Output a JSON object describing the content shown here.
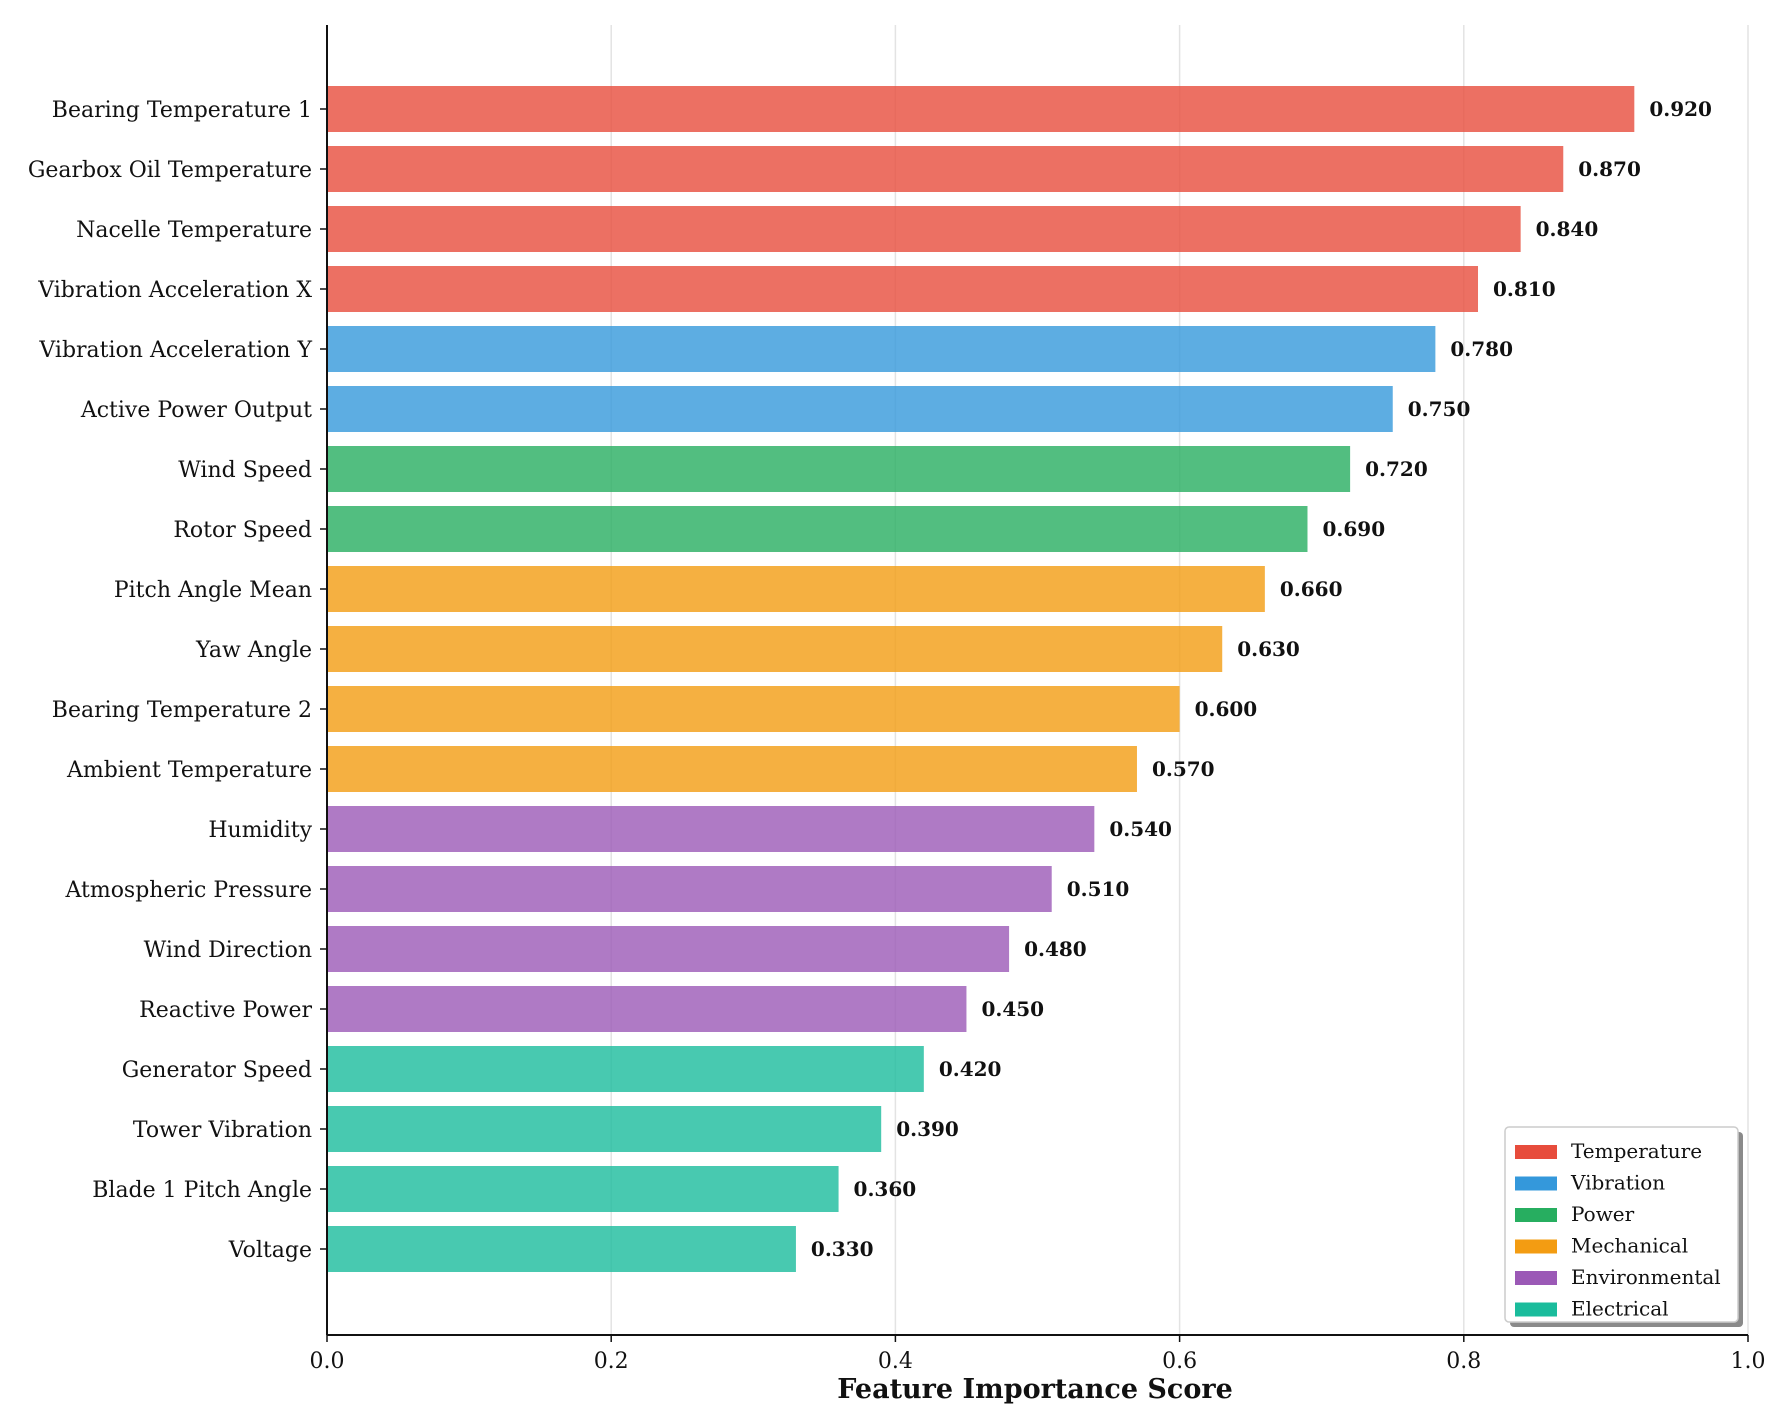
{
  "chart_data": {
    "type": "bar",
    "orientation": "horizontal",
    "title": "",
    "xlabel": "Feature Importance Score",
    "ylabel": "",
    "xlim": [
      0,
      1.0
    ],
    "xticks": [
      "0.0",
      "0.2",
      "0.4",
      "0.6",
      "0.8",
      "1.0"
    ],
    "grid": "vertical",
    "legend_position": "bottom-right",
    "categories": [
      "Bearing Temperature 1",
      "Gearbox Oil Temperature",
      "Nacelle Temperature",
      "Vibration Acceleration X",
      "Vibration Acceleration Y",
      "Active Power Output",
      "Wind Speed",
      "Rotor Speed",
      "Pitch Angle Mean",
      "Yaw Angle",
      "Bearing Temperature 2",
      "Ambient Temperature",
      "Humidity",
      "Atmospheric Pressure",
      "Wind Direction",
      "Reactive Power",
      "Generator Speed",
      "Tower Vibration",
      "Blade 1 Pitch Angle",
      "Voltage"
    ],
    "values": [
      0.92,
      0.87,
      0.84,
      0.81,
      0.78,
      0.75,
      0.72,
      0.69,
      0.66,
      0.63,
      0.6,
      0.57,
      0.54,
      0.51,
      0.48,
      0.45,
      0.42,
      0.39,
      0.36,
      0.33
    ],
    "value_labels": [
      "0.920",
      "0.870",
      "0.840",
      "0.810",
      "0.780",
      "0.750",
      "0.720",
      "0.690",
      "0.660",
      "0.630",
      "0.600",
      "0.570",
      "0.540",
      "0.510",
      "0.480",
      "0.450",
      "0.420",
      "0.390",
      "0.360",
      "0.330"
    ],
    "bar_groups": [
      "Temperature",
      "Temperature",
      "Temperature",
      "Temperature",
      "Vibration",
      "Vibration",
      "Power",
      "Power",
      "Mechanical",
      "Mechanical",
      "Mechanical",
      "Mechanical",
      "Environmental",
      "Environmental",
      "Environmental",
      "Environmental",
      "Electrical",
      "Electrical",
      "Electrical",
      "Electrical"
    ],
    "legend": [
      {
        "name": "Temperature",
        "color": "#e74c3c"
      },
      {
        "name": "Vibration",
        "color": "#3498db"
      },
      {
        "name": "Power",
        "color": "#27ae60"
      },
      {
        "name": "Mechanical",
        "color": "#f39c12"
      },
      {
        "name": "Environmental",
        "color": "#9b59b6"
      },
      {
        "name": "Electrical",
        "color": "#1abc9c"
      }
    ]
  }
}
